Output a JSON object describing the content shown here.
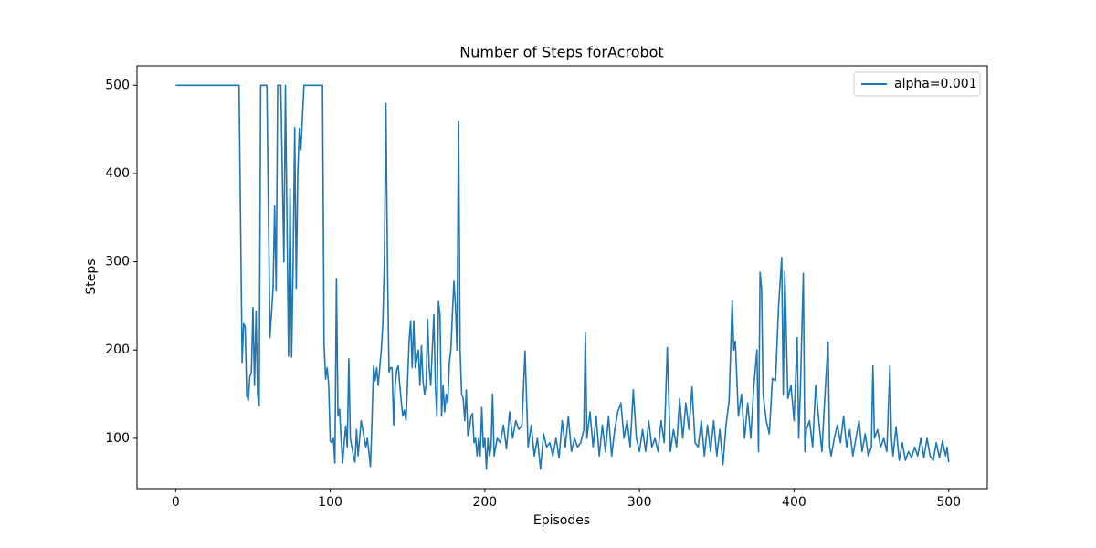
{
  "chart_data": {
    "type": "line",
    "title": "Number of Steps forAcrobot",
    "xlabel": "Episodes",
    "ylabel": "Steps",
    "x": [
      0,
      41,
      43,
      44,
      45,
      46,
      47,
      48,
      49,
      50,
      51,
      52,
      53,
      54,
      55,
      59,
      61,
      63,
      64,
      65,
      66,
      68,
      70,
      71,
      73,
      74,
      75,
      76,
      77,
      78,
      79,
      80,
      81,
      83,
      95,
      96,
      97,
      98,
      99,
      100,
      101,
      102,
      103,
      104,
      105,
      106,
      107,
      108,
      109,
      110,
      111,
      112,
      113,
      114,
      115,
      116,
      117,
      118,
      119,
      120,
      121,
      122,
      123,
      124,
      126,
      127,
      128,
      129,
      130,
      131,
      132,
      133,
      134,
      135,
      136,
      137,
      138,
      139,
      140,
      141,
      142,
      143,
      144,
      145,
      146,
      147,
      148,
      149,
      150,
      151,
      152,
      153,
      154,
      155,
      156,
      157,
      158,
      159,
      160,
      161,
      162,
      163,
      164,
      165,
      166,
      167,
      168,
      169,
      170,
      171,
      172,
      173,
      174,
      175,
      176,
      177,
      178,
      179,
      180,
      181,
      182,
      183,
      184,
      185,
      186,
      187,
      188,
      189,
      190,
      191,
      192,
      193,
      194,
      195,
      196,
      197,
      198,
      199,
      200,
      201,
      202,
      203,
      204,
      205,
      206,
      207,
      208,
      210,
      212,
      214,
      216,
      218,
      220,
      222,
      224,
      226,
      228,
      230,
      232,
      234,
      236,
      238,
      240,
      242,
      244,
      246,
      248,
      250,
      252,
      254,
      256,
      258,
      260,
      262,
      264,
      265,
      266,
      268,
      270,
      272,
      274,
      276,
      278,
      280,
      282,
      284,
      286,
      288,
      290,
      292,
      294,
      296,
      298,
      300,
      302,
      304,
      306,
      308,
      310,
      312,
      314,
      316,
      318,
      320,
      322,
      324,
      326,
      328,
      330,
      332,
      334,
      336,
      338,
      340,
      342,
      344,
      346,
      348,
      350,
      352,
      354,
      356,
      358,
      360,
      361,
      362,
      364,
      366,
      368,
      370,
      372,
      374,
      376,
      377,
      378,
      379,
      380,
      382,
      384,
      386,
      388,
      390,
      392,
      393,
      394,
      396,
      398,
      400,
      402,
      403,
      404,
      406,
      407,
      408,
      410,
      412,
      414,
      416,
      418,
      420,
      422,
      423,
      424,
      426,
      428,
      430,
      432,
      434,
      436,
      438,
      440,
      442,
      444,
      446,
      448,
      450,
      451,
      452,
      454,
      456,
      458,
      460,
      462,
      463,
      464,
      466,
      468,
      470,
      472,
      474,
      476,
      478,
      480,
      482,
      484,
      486,
      488,
      490,
      492,
      494,
      496,
      498,
      499,
      500
    ],
    "series": [
      {
        "name": "alpha=0.001",
        "color": "#1f77b4",
        "values": [
          500,
          500,
          186,
          230,
          226,
          148,
          143,
          170,
          175,
          248,
          160,
          244,
          150,
          137,
          500,
          500,
          214,
          270,
          363,
          267,
          500,
          500,
          300,
          500,
          193,
          382,
          192,
          300,
          452,
          270,
          400,
          451,
          427,
          500,
          500,
          208,
          167,
          180,
          160,
          97,
          95,
          100,
          72,
          281,
          125,
          133,
          100,
          72,
          95,
          114,
          90,
          190,
          100,
          90,
          80,
          73,
          110,
          80,
          100,
          120,
          110,
          100,
          90,
          100,
          68,
          120,
          182,
          165,
          180,
          160,
          180,
          200,
          230,
          300,
          479,
          300,
          175,
          180,
          180,
          115,
          160,
          178,
          182,
          160,
          140,
          125,
          132,
          120,
          165,
          210,
          233,
          180,
          233,
          180,
          190,
          200,
          160,
          205,
          165,
          150,
          160,
          235,
          180,
          160,
          200,
          240,
          160,
          125,
          255,
          240,
          125,
          160,
          130,
          150,
          140,
          185,
          200,
          240,
          278,
          250,
          200,
          459,
          200,
          150,
          145,
          120,
          155,
          103,
          110,
          125,
          128,
          95,
          100,
          80,
          100,
          80,
          135,
          90,
          100,
          65,
          100,
          80,
          90,
          150,
          80,
          90,
          100,
          95,
          115,
          88,
          130,
          100,
          120,
          110,
          115,
          199,
          90,
          115,
          80,
          100,
          65,
          105,
          90,
          95,
          80,
          100,
          78,
          120,
          90,
          125,
          85,
          100,
          90,
          95,
          110,
          220,
          100,
          130,
          90,
          125,
          80,
          115,
          85,
          125,
          80,
          110,
          130,
          140,
          100,
          120,
          90,
          155,
          100,
          85,
          110,
          85,
          120,
          90,
          100,
          85,
          120,
          95,
          203,
          85,
          110,
          90,
          145,
          100,
          140,
          110,
          158,
          95,
          90,
          120,
          80,
          115,
          85,
          120,
          80,
          110,
          70,
          115,
          143,
          256,
          200,
          210,
          125,
          150,
          100,
          140,
          100,
          160,
          200,
          85,
          288,
          270,
          150,
          120,
          105,
          168,
          165,
          250,
          305,
          150,
          289,
          145,
          160,
          120,
          214,
          100,
          150,
          287,
          85,
          110,
          120,
          90,
          160,
          120,
          85,
          150,
          209,
          90,
          80,
          100,
          115,
          95,
          125,
          90,
          110,
          80,
          100,
          120,
          85,
          105,
          80,
          90,
          182,
          100,
          110,
          90,
          100,
          85,
          182,
          100,
          80,
          113,
          75,
          95,
          75,
          85,
          78,
          90,
          80,
          100,
          78,
          100,
          80,
          75,
          95,
          78,
          97,
          80,
          90,
          73
        ]
      }
    ],
    "xlim": [
      -25,
      525
    ],
    "ylim": [
      43,
      522
    ],
    "xticks": [
      0,
      100,
      200,
      300,
      400,
      500
    ],
    "yticks": [
      100,
      200,
      300,
      400,
      500
    ],
    "legend": "upper right"
  }
}
